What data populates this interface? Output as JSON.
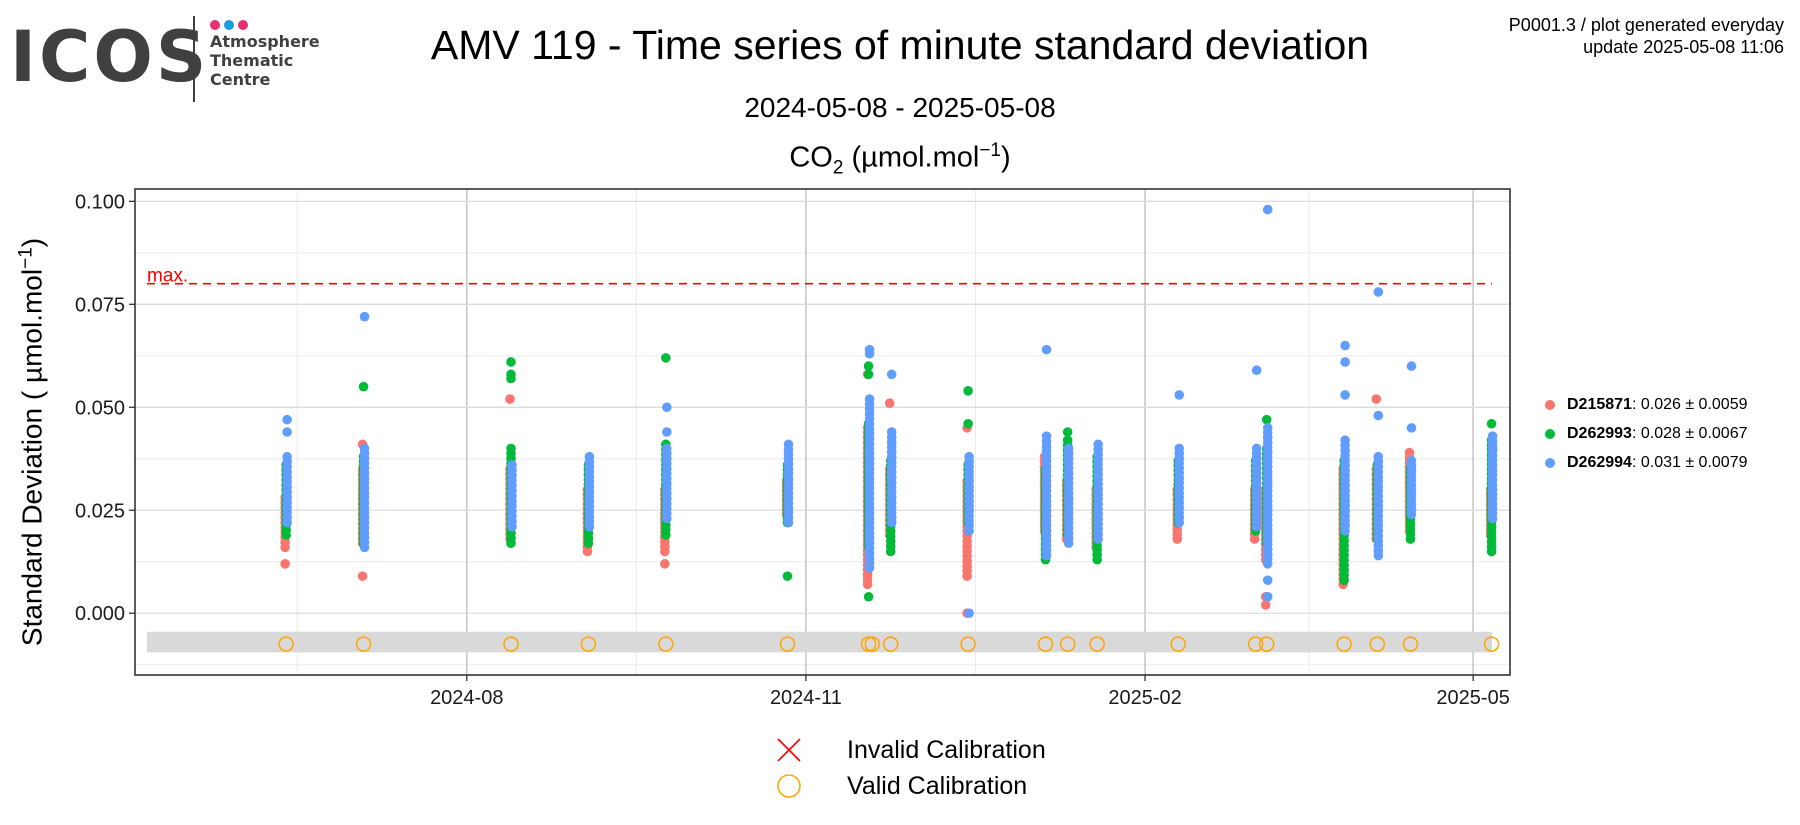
{
  "logo": {
    "word": "ICOS",
    "line1": "Atmosphere",
    "line2": "Thematic",
    "line3": "Centre",
    "dot_colors": [
      "#e8306e",
      "#1a9ee0",
      "#e8306e"
    ]
  },
  "header": {
    "title": "AMV 119 - Time series of minute standard deviation",
    "period": "2024-05-08 - 2025-05-08",
    "subtitle_main": "CO",
    "subtitle_sub": "2",
    "subtitle_unit": " (µmol.mol",
    "subtitle_exp": "−1",
    "subtitle_close": ")",
    "meta_line1": "P0001.3 / plot generated everyday",
    "meta_line2": "update  2025-05-08 11:06"
  },
  "legend": {
    "series": [
      {
        "id": "D215871",
        "stat": ": 0.026 ± 0.0059",
        "color": "#f8766d"
      },
      {
        "id": "D262993",
        "stat": ": 0.028 ± 0.0067",
        "color": "#00ba38"
      },
      {
        "id": "D262994",
        "stat": ": 0.031 ± 0.0079",
        "color": "#619cff"
      }
    ],
    "calibration": [
      {
        "label": "Invalid Calibration",
        "symbol": "x",
        "color": "#ff0000"
      },
      {
        "label": "Valid Calibration",
        "symbol": "circle",
        "color": "#ffa500"
      }
    ]
  },
  "chart_data": {
    "type": "scatter",
    "ylabel_main": "Standard Deviation ( µmol.mol",
    "ylabel_exp": "−1",
    "ylabel_close": ")",
    "x_ticks": [
      {
        "date": "2024-08-01",
        "label": "2024-08"
      },
      {
        "date": "2024-11-01",
        "label": "2024-11"
      },
      {
        "date": "2025-02-01",
        "label": "2025-02"
      },
      {
        "date": "2025-05-01",
        "label": "2025-05"
      }
    ],
    "y_ticks": [
      0,
      0.025,
      0.05,
      0.075,
      0.1
    ],
    "y_tick_labels": [
      "0.000",
      "0.025",
      "0.050",
      "0.075",
      "0.100"
    ],
    "xlim": [
      "2024-05-03",
      "2025-05-11"
    ],
    "ylim": [
      -0.015,
      0.103
    ],
    "grid": true,
    "max_line": {
      "value": 0.08,
      "label": "max.",
      "color": "#ff0000"
    },
    "valid_calibration_band": {
      "y": -0.0075,
      "ymin": -0.0095,
      "ymax": -0.0045
    },
    "valid_calibrations": [
      "2024-06-13",
      "2024-07-04",
      "2024-08-13",
      "2024-09-03",
      "2024-09-24",
      "2024-10-27",
      "2024-11-18",
      "2024-11-19",
      "2024-11-24",
      "2024-12-15",
      "2025-01-05",
      "2025-01-11",
      "2025-01-19",
      "2025-02-10",
      "2025-03-03",
      "2025-03-06",
      "2025-03-27",
      "2025-04-05",
      "2025-04-14",
      "2025-05-06"
    ],
    "clusters": [
      {
        "date": "2024-06-13",
        "series": {
          "D215871": {
            "min": 0.016,
            "max": 0.028,
            "extra": [
              0.012
            ]
          },
          "D262993": {
            "min": 0.019,
            "max": 0.036,
            "extra": []
          },
          "D262994": {
            "min": 0.022,
            "max": 0.038,
            "extra": [
              0.047,
              0.044
            ]
          }
        }
      },
      {
        "date": "2024-07-04",
        "series": {
          "D215871": {
            "min": 0.017,
            "max": 0.035,
            "extra": [
              0.009,
              0.041
            ]
          },
          "D262993": {
            "min": 0.017,
            "max": 0.038,
            "extra": [
              0.055
            ]
          },
          "D262994": {
            "min": 0.016,
            "max": 0.04,
            "extra": [
              0.072
            ]
          }
        }
      },
      {
        "date": "2024-08-13",
        "series": {
          "D215871": {
            "min": 0.018,
            "max": 0.035,
            "extra": [
              0.052
            ]
          },
          "D262993": {
            "min": 0.017,
            "max": 0.04,
            "extra": [
              0.061,
              0.058,
              0.057
            ]
          },
          "D262994": {
            "min": 0.021,
            "max": 0.036,
            "extra": []
          }
        }
      },
      {
        "date": "2024-09-03",
        "series": {
          "D215871": {
            "min": 0.015,
            "max": 0.03,
            "extra": []
          },
          "D262993": {
            "min": 0.017,
            "max": 0.036,
            "extra": []
          },
          "D262994": {
            "min": 0.021,
            "max": 0.038,
            "extra": []
          }
        }
      },
      {
        "date": "2024-09-24",
        "series": {
          "D215871": {
            "min": 0.015,
            "max": 0.03,
            "extra": [
              0.012
            ]
          },
          "D262993": {
            "min": 0.019,
            "max": 0.041,
            "extra": [
              0.062
            ]
          },
          "D262994": {
            "min": 0.023,
            "max": 0.04,
            "extra": [
              0.05,
              0.044
            ]
          }
        }
      },
      {
        "date": "2024-10-27",
        "series": {
          "D215871": {
            "min": 0.024,
            "max": 0.032,
            "extra": []
          },
          "D262993": {
            "min": 0.022,
            "max": 0.036,
            "extra": [
              0.009
            ]
          },
          "D262994": {
            "min": 0.022,
            "max": 0.041,
            "extra": []
          }
        }
      },
      {
        "date": "2024-11-18",
        "series": {
          "D215871": {
            "min": 0.007,
            "max": 0.045,
            "extra": [
              0.058
            ]
          },
          "D262993": {
            "min": 0.016,
            "max": 0.046,
            "extra": [
              0.004,
              0.058,
              0.06
            ]
          },
          "D262994": {
            "min": 0.011,
            "max": 0.052,
            "extra": [
              0.063,
              0.064
            ]
          }
        }
      },
      {
        "date": "2024-11-24",
        "series": {
          "D215871": {
            "min": 0.019,
            "max": 0.035,
            "extra": [
              0.051
            ]
          },
          "D262993": {
            "min": 0.015,
            "max": 0.037,
            "extra": []
          },
          "D262994": {
            "min": 0.022,
            "max": 0.044,
            "extra": [
              0.058
            ]
          }
        }
      },
      {
        "date": "2024-12-15",
        "series": {
          "D215871": {
            "min": 0.009,
            "max": 0.032,
            "extra": [
              0.045,
              0.0
            ]
          },
          "D262993": {
            "min": 0.022,
            "max": 0.036,
            "extra": [
              0.054,
              0.046
            ]
          },
          "D262994": {
            "min": 0.02,
            "max": 0.038,
            "extra": [
              0.0
            ]
          }
        }
      },
      {
        "date": "2025-01-05",
        "series": {
          "D215871": {
            "min": 0.02,
            "max": 0.038,
            "extra": []
          },
          "D262993": {
            "min": 0.013,
            "max": 0.035,
            "extra": []
          },
          "D262994": {
            "min": 0.014,
            "max": 0.043,
            "extra": [
              0.064
            ]
          }
        }
      },
      {
        "date": "2025-01-11",
        "series": {
          "D215871": {
            "min": 0.018,
            "max": 0.032,
            "extra": []
          },
          "D262993": {
            "min": 0.019,
            "max": 0.042,
            "extra": [
              0.044
            ]
          },
          "D262994": {
            "min": 0.017,
            "max": 0.04,
            "extra": []
          }
        }
      },
      {
        "date": "2025-01-19",
        "series": {
          "D215871": {
            "min": 0.016,
            "max": 0.03,
            "extra": []
          },
          "D262993": {
            "min": 0.013,
            "max": 0.038,
            "extra": []
          },
          "D262994": {
            "min": 0.018,
            "max": 0.041,
            "extra": []
          }
        }
      },
      {
        "date": "2025-02-10",
        "series": {
          "D215871": {
            "min": 0.018,
            "max": 0.03,
            "extra": []
          },
          "D262993": {
            "min": 0.022,
            "max": 0.037,
            "extra": []
          },
          "D262994": {
            "min": 0.022,
            "max": 0.04,
            "extra": [
              0.053
            ]
          }
        }
      },
      {
        "date": "2025-03-03",
        "series": {
          "D215871": {
            "min": 0.018,
            "max": 0.03,
            "extra": []
          },
          "D262993": {
            "min": 0.02,
            "max": 0.037,
            "extra": []
          },
          "D262994": {
            "min": 0.021,
            "max": 0.04,
            "extra": [
              0.059
            ]
          }
        }
      },
      {
        "date": "2025-03-06",
        "series": {
          "D215871": {
            "min": 0.013,
            "max": 0.03,
            "extra": [
              0.002,
              0.004
            ]
          },
          "D262993": {
            "min": 0.017,
            "max": 0.04,
            "extra": [
              0.047
            ]
          },
          "D262994": {
            "min": 0.012,
            "max": 0.045,
            "extra": [
              0.098,
              0.004,
              0.008
            ]
          }
        }
      },
      {
        "date": "2025-03-27",
        "series": {
          "D215871": {
            "min": 0.007,
            "max": 0.035,
            "extra": []
          },
          "D262993": {
            "min": 0.008,
            "max": 0.037,
            "extra": []
          },
          "D262994": {
            "min": 0.02,
            "max": 0.042,
            "extra": [
              0.065,
              0.061,
              0.053
            ]
          }
        }
      },
      {
        "date": "2025-04-05",
        "series": {
          "D215871": {
            "min": 0.018,
            "max": 0.035,
            "extra": [
              0.052
            ]
          },
          "D262993": {
            "min": 0.018,
            "max": 0.036,
            "extra": []
          },
          "D262994": {
            "min": 0.014,
            "max": 0.038,
            "extra": [
              0.078,
              0.048
            ]
          }
        }
      },
      {
        "date": "2025-04-14",
        "series": {
          "D215871": {
            "min": 0.02,
            "max": 0.039,
            "extra": []
          },
          "D262993": {
            "min": 0.018,
            "max": 0.035,
            "extra": []
          },
          "D262994": {
            "min": 0.024,
            "max": 0.037,
            "extra": [
              0.06,
              0.045
            ]
          }
        }
      },
      {
        "date": "2025-05-06",
        "series": {
          "D215871": {
            "min": 0.019,
            "max": 0.03,
            "extra": []
          },
          "D262993": {
            "min": 0.015,
            "max": 0.042,
            "extra": [
              0.046
            ]
          },
          "D262994": {
            "min": 0.023,
            "max": 0.043,
            "extra": [
              0.04
            ]
          }
        }
      }
    ]
  }
}
